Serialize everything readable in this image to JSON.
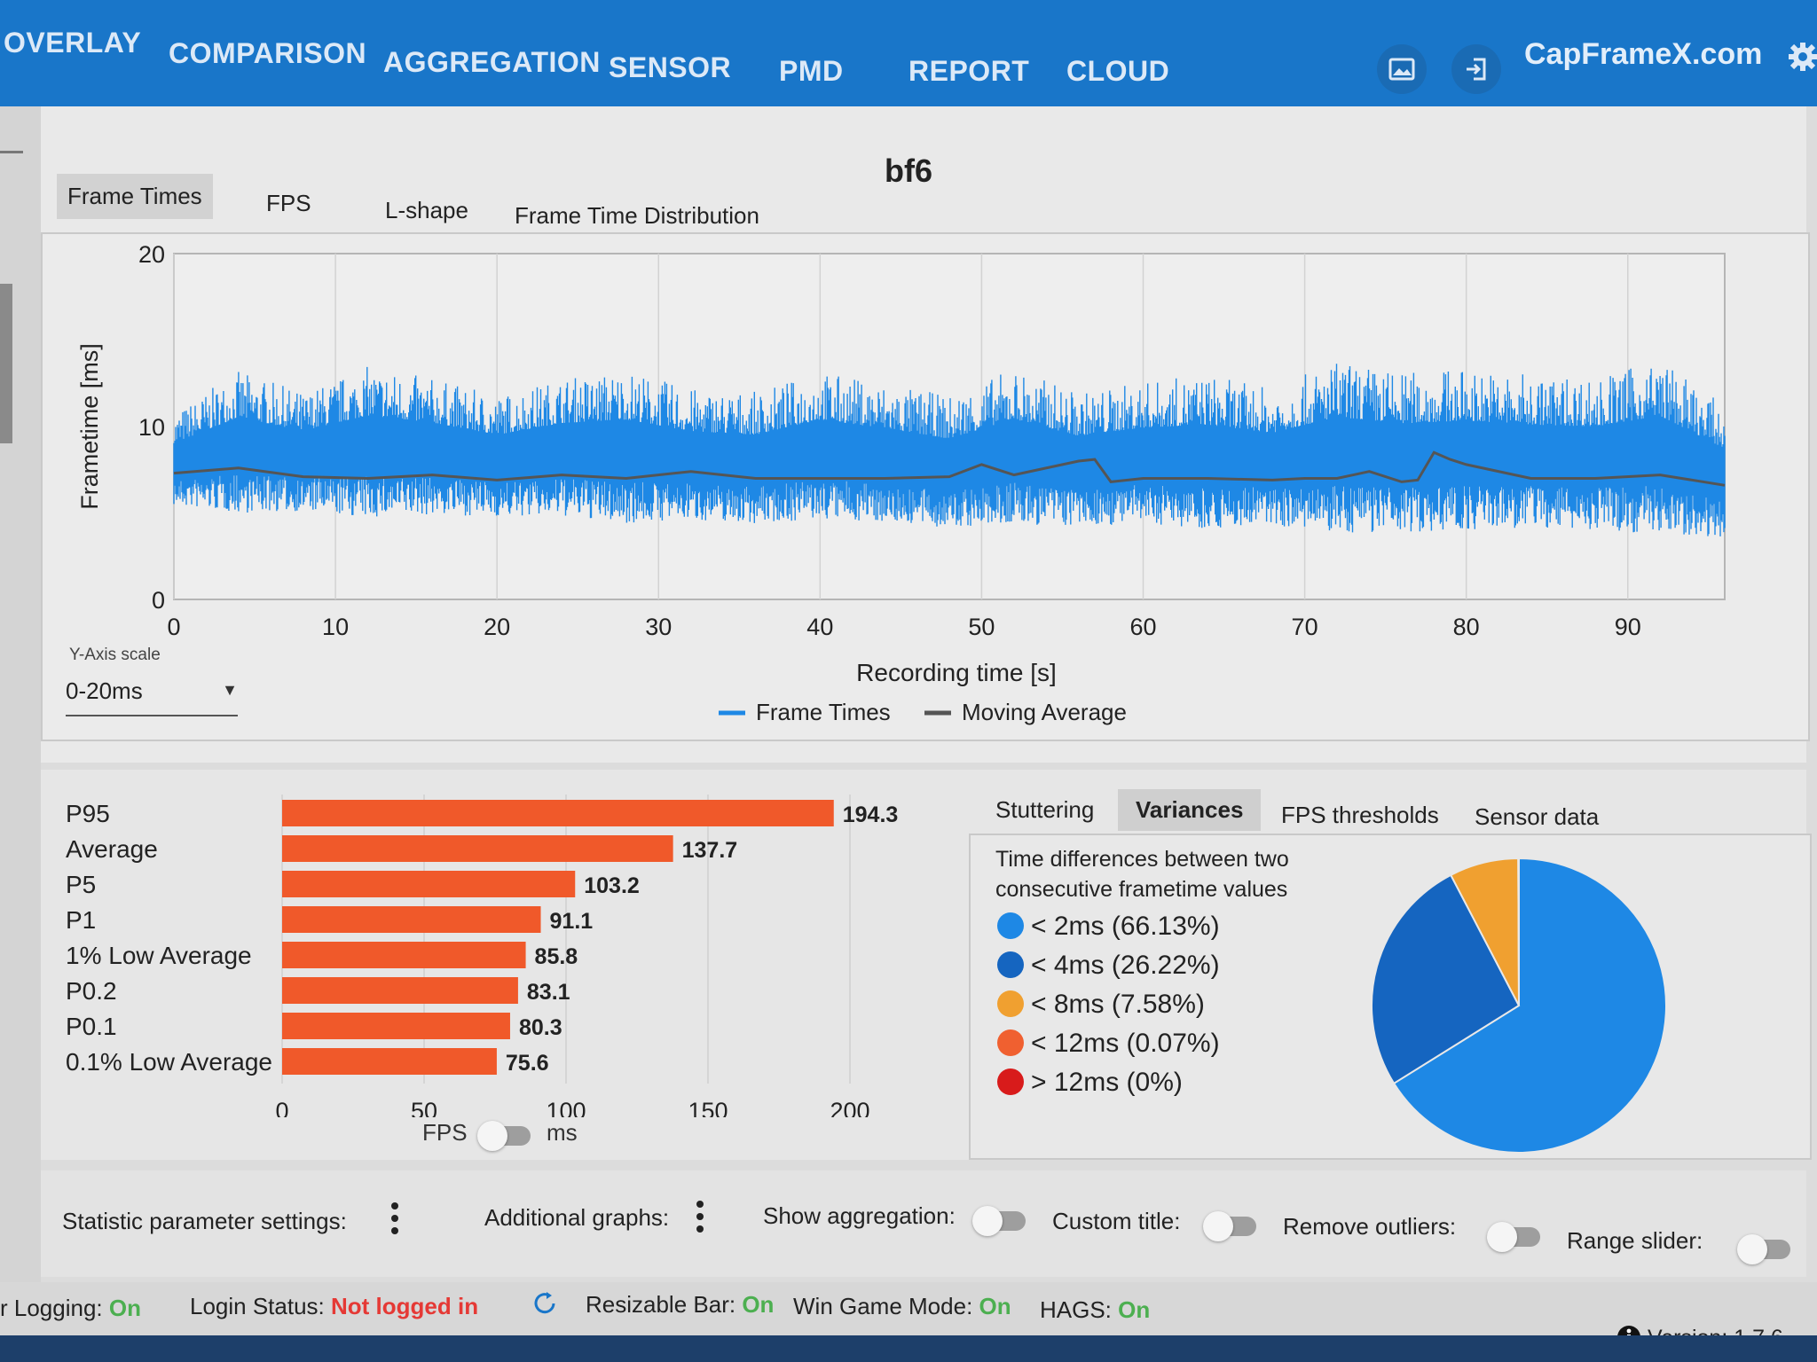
{
  "nav": {
    "items": [
      "OVERLAY",
      "COMPARISON",
      "AGGREGATION",
      "SENSOR",
      "PMD",
      "REPORT",
      "CLOUD"
    ],
    "brand": "CapFrameX.com"
  },
  "chart": {
    "title": "bf6",
    "tabs": [
      "Frame Times",
      "FPS",
      "L-shape",
      "Frame Time Distribution"
    ],
    "active_tab": "Frame Times",
    "y_scale_label": "Y-Axis scale",
    "y_scale_value": "0-20ms",
    "colors": {
      "frame_times": "#1e88e5",
      "moving_average": "#555555"
    }
  },
  "chart_data": [
    {
      "type": "line",
      "xlabel": "Recording time [s]",
      "ylabel": "Frametime [ms]",
      "xlim": [
        0,
        96
      ],
      "ylim": [
        0,
        20
      ],
      "x_ticks": [
        0,
        10,
        20,
        30,
        40,
        50,
        60,
        70,
        80,
        90
      ],
      "y_ticks": [
        0,
        10,
        20
      ],
      "grid": true,
      "legend_position": "bottom",
      "series": [
        {
          "name": "Frame Times",
          "x": [
            0,
            4,
            8,
            12,
            16,
            20,
            24,
            28,
            32,
            36,
            40,
            44,
            48,
            52,
            56,
            60,
            64,
            68,
            72,
            76,
            80,
            84,
            88,
            92,
            96
          ],
          "min": [
            5.4,
            5.0,
            5.1,
            4.7,
            4.9,
            4.8,
            4.8,
            4.4,
            4.6,
            4.4,
            4.6,
            4.5,
            4.1,
            4.3,
            4.2,
            4.4,
            4.1,
            4.3,
            3.8,
            3.9,
            4.0,
            4.1,
            4.0,
            3.8,
            3.6
          ],
          "max": [
            10.8,
            13.2,
            12.0,
            13.5,
            12.8,
            11.8,
            12.8,
            13.3,
            12.2,
            12.0,
            13.2,
            12.5,
            11.8,
            13.4,
            12.0,
            12.6,
            13.0,
            12.2,
            13.8,
            13.2,
            13.4,
            13.0,
            12.9,
            13.9,
            11.2
          ]
        },
        {
          "name": "Moving Average",
          "x": [
            0,
            4,
            8,
            12,
            16,
            20,
            24,
            28,
            32,
            36,
            40,
            44,
            48,
            50,
            52,
            56,
            57,
            58,
            60,
            64,
            68,
            70,
            72,
            74,
            76,
            77,
            78,
            79,
            80,
            84,
            88,
            92,
            96
          ],
          "y": [
            7.3,
            7.6,
            7.1,
            7.0,
            7.2,
            6.9,
            7.2,
            7.0,
            7.4,
            7.0,
            7.0,
            7.0,
            7.1,
            7.8,
            7.2,
            8.0,
            8.1,
            6.8,
            7.0,
            7.0,
            6.9,
            7.0,
            7.0,
            7.4,
            6.8,
            6.9,
            8.5,
            8.1,
            7.8,
            7.0,
            7.0,
            7.2,
            6.6
          ]
        }
      ]
    },
    {
      "type": "bar",
      "orientation": "horizontal",
      "categories": [
        "P95",
        "Average",
        "P5",
        "P1",
        "1% Low Average",
        "P0.2",
        "P0.1",
        "0.1% Low Average"
      ],
      "values": [
        194.3,
        137.7,
        103.2,
        91.1,
        85.8,
        83.1,
        80.3,
        75.6
      ],
      "xlim": [
        0,
        200
      ],
      "x_ticks": [
        0,
        50,
        100,
        150,
        200
      ],
      "color": "#f0592a"
    },
    {
      "type": "pie",
      "labels": [
        "< 2ms (66.13%)",
        "< 4ms (26.22%)",
        "< 8ms (7.58%)",
        "< 12ms (0.07%)",
        "> 12ms (0%)"
      ],
      "values": [
        66.13,
        26.22,
        7.58,
        0.07,
        0
      ],
      "colors": [
        "#1e88e5",
        "#1565c0",
        "#f0a030",
        "#f06030",
        "#d81b1b"
      ]
    }
  ],
  "stats": {
    "unit_left": "FPS",
    "unit_right": "ms",
    "right_tabs": [
      "Stuttering",
      "Variances",
      "FPS thresholds",
      "Sensor data"
    ],
    "active_right_tab": "Variances",
    "description": "Time differences between two consecutive frametime values"
  },
  "settings": {
    "statistic": "Statistic parameter settings:",
    "additional": "Additional graphs:",
    "aggregation": "Show aggregation:",
    "custom_title": "Custom title:",
    "remove_outliers": "Remove outliers:",
    "range_slider": "Range slider:"
  },
  "status": {
    "logging_label": "r Logging:",
    "logging_value": "On",
    "login_label": "Login Status:",
    "login_value": "Not logged in",
    "rebar_label": "Resizable Bar:",
    "rebar_value": "On",
    "gamemode_label": "Win Game Mode:",
    "gamemode_value": "On",
    "hags_label": "HAGS:",
    "hags_value": "On",
    "version": "Version: 1.7.6"
  }
}
